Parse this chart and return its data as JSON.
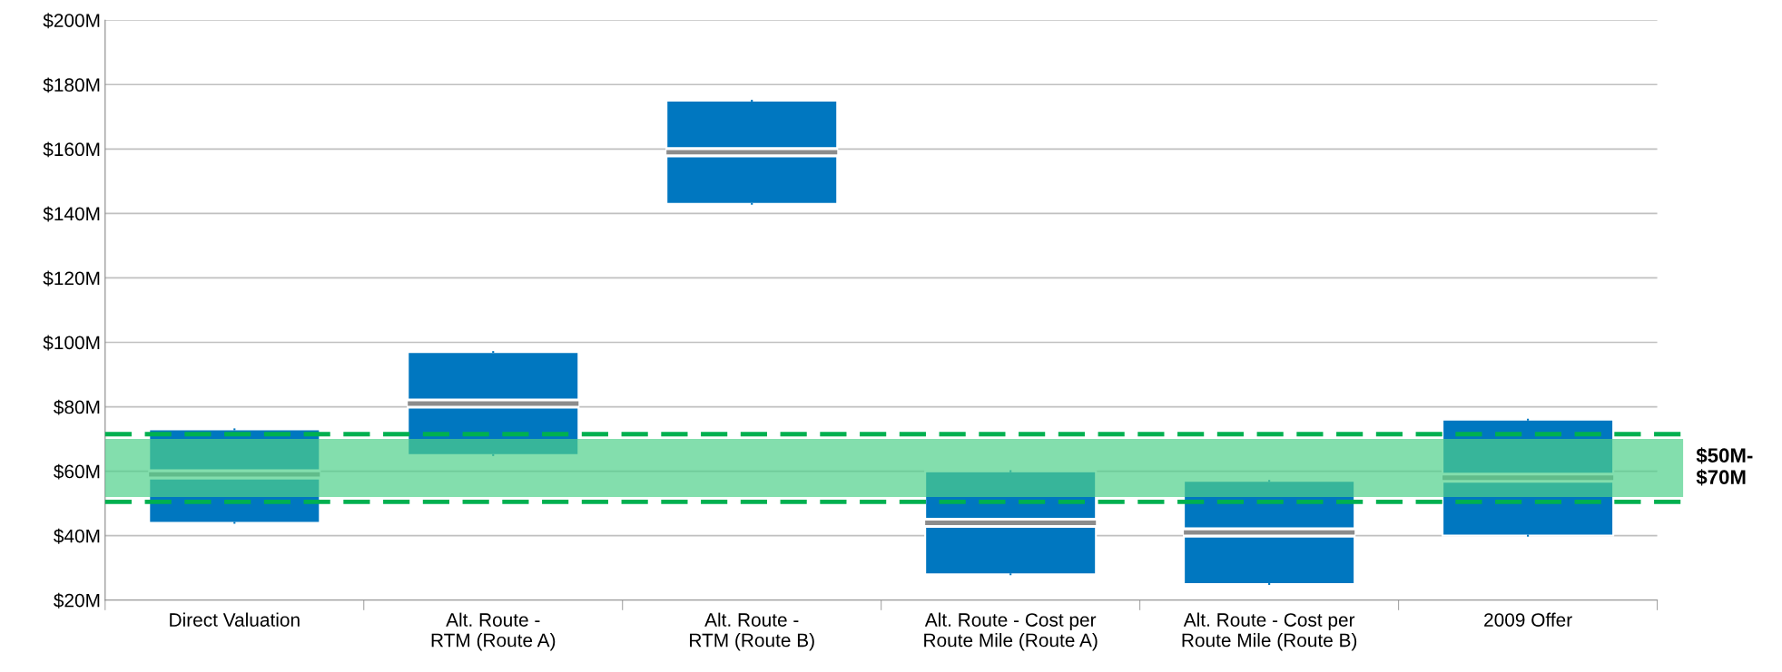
{
  "chart_data": {
    "type": "box",
    "categories": [
      "Direct Valuation",
      "Alt. Route -\nRTM (Route A)",
      "Alt. Route -\nRTM (Route B)",
      "Alt. Route - Cost per\nRoute Mile (Route A)",
      "Alt. Route - Cost per\nRoute Mile (Route B)",
      "2009 Offer"
    ],
    "series": [
      {
        "color": "#0077c0",
        "boxes": [
          {
            "low": 44,
            "q1": 44,
            "median": 59,
            "q3": 73,
            "high": 73
          },
          {
            "low": 65,
            "q1": 65,
            "median": 81,
            "q3": 97,
            "high": 97
          },
          {
            "low": 143,
            "q1": 143,
            "median": 159,
            "q3": 175,
            "high": 175
          },
          {
            "low": 28,
            "q1": 28,
            "median": 44,
            "q3": 60,
            "high": 60
          },
          {
            "low": 25,
            "q1": 25,
            "median": 41,
            "q3": 57,
            "high": 57
          },
          {
            "low": 40,
            "q1": 40,
            "median": 58,
            "q3": 76,
            "high": 76
          }
        ]
      }
    ],
    "ylim": [
      20,
      200
    ],
    "yticks": [
      {
        "value": 20,
        "label": "$20M"
      },
      {
        "value": 40,
        "label": "$40M"
      },
      {
        "value": 60,
        "label": "$60M"
      },
      {
        "value": 80,
        "label": "$80M"
      },
      {
        "value": 100,
        "label": "$100M"
      },
      {
        "value": 120,
        "label": "$120M"
      },
      {
        "value": 140,
        "label": "$140M"
      },
      {
        "value": 160,
        "label": "$160M"
      },
      {
        "value": 180,
        "label": "$180M"
      },
      {
        "value": 200,
        "label": "$200M"
      }
    ],
    "grid": "y",
    "legend": false,
    "bands": [
      {
        "axis": "y",
        "from": 52,
        "to": 70,
        "label": "$50M-\n$70M",
        "color": "#4fd08a"
      }
    ],
    "ref_lines": [
      {
        "axis": "y",
        "value": 71.5,
        "color": "#00b050",
        "line_style": "dashed"
      },
      {
        "axis": "y",
        "value": 50.5,
        "color": "#00b050",
        "line_style": "dashed"
      }
    ]
  }
}
